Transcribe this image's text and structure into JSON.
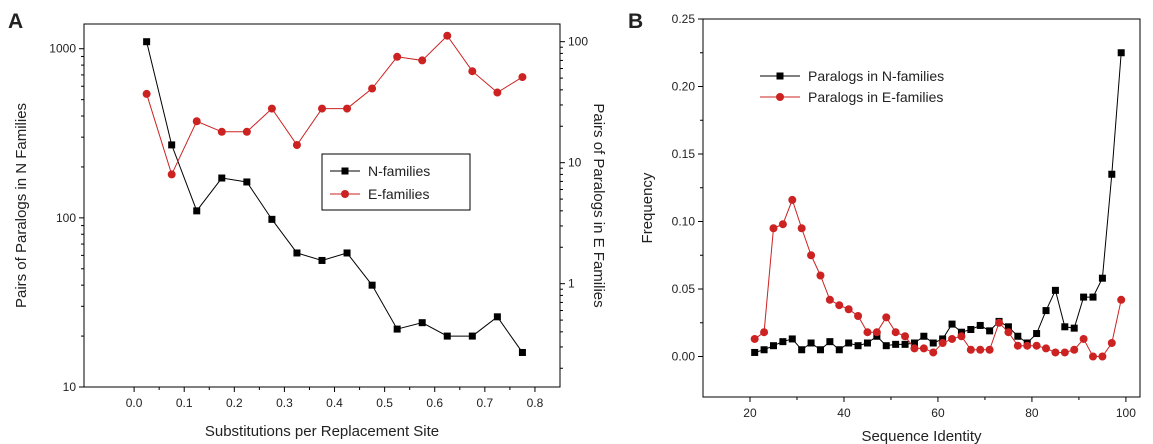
{
  "chart_data": [
    {
      "panel_label": "A",
      "type": "line",
      "xlabel": "Substitutions per Replacement Site",
      "ylabel_left": "Pairs of Paralogs in N Families",
      "ylabel_right": "Pairs of Paralogs in E Families",
      "xlim": [
        -0.1,
        0.85
      ],
      "xticks": [
        "0.0",
        "0.1",
        "0.2",
        "0.3",
        "0.4",
        "0.5",
        "0.6",
        "0.7",
        "0.8"
      ],
      "yscale_left": "log",
      "ylim_left": [
        10,
        1400
      ],
      "yticks_left": [
        "10",
        "100",
        "1000"
      ],
      "yscale_right": "log",
      "ylim_right": [
        0.14,
        140
      ],
      "yticks_right": [
        "1",
        "10",
        "100"
      ],
      "legend_placement": "center-right",
      "series": [
        {
          "name": "N-families",
          "axis": "left",
          "marker": "square",
          "color": "#000000",
          "x": [
            0.025,
            0.075,
            0.125,
            0.175,
            0.225,
            0.275,
            0.325,
            0.375,
            0.425,
            0.475,
            0.525,
            0.575,
            0.625,
            0.675,
            0.725,
            0.775
          ],
          "y": [
            1100,
            270,
            110,
            172,
            163,
            98,
            62,
            56,
            62,
            40,
            22,
            24,
            20,
            20,
            26,
            16
          ]
        },
        {
          "name": "E-families",
          "axis": "right",
          "marker": "circle",
          "color": "#cc2222",
          "x": [
            0.025,
            0.075,
            0.125,
            0.175,
            0.225,
            0.275,
            0.325,
            0.375,
            0.425,
            0.475,
            0.525,
            0.575,
            0.625,
            0.675,
            0.725,
            0.775
          ],
          "y": [
            37,
            8,
            22,
            18,
            18,
            28,
            14,
            28,
            28,
            41,
            75,
            70,
            112,
            57,
            38,
            51
          ]
        }
      ]
    },
    {
      "panel_label": "B",
      "type": "line",
      "xlabel": "Sequence Identity",
      "ylabel": "Frequency",
      "xlim": [
        10,
        103
      ],
      "ylim": [
        -0.03,
        0.25
      ],
      "xticks": [
        "20",
        "40",
        "60",
        "80",
        "100"
      ],
      "yticks": [
        "0.00",
        "0.05",
        "0.10",
        "0.15",
        "0.20",
        "0.25"
      ],
      "legend_placement": "top-left",
      "series": [
        {
          "name": "Paralogs in N-families",
          "marker": "square",
          "color": "#000000",
          "x": [
            21,
            23,
            25,
            27,
            29,
            31,
            33,
            35,
            37,
            39,
            41,
            43,
            45,
            47,
            49,
            51,
            53,
            55,
            57,
            59,
            61,
            63,
            65,
            67,
            69,
            71,
            73,
            75,
            77,
            79,
            81,
            83,
            85,
            87,
            89,
            91,
            93,
            95,
            97,
            99
          ],
          "y": [
            0.003,
            0.005,
            0.008,
            0.011,
            0.013,
            0.005,
            0.01,
            0.005,
            0.011,
            0.005,
            0.01,
            0.008,
            0.01,
            0.015,
            0.008,
            0.009,
            0.009,
            0.01,
            0.015,
            0.01,
            0.013,
            0.024,
            0.018,
            0.02,
            0.023,
            0.019,
            0.026,
            0.022,
            0.015,
            0.01,
            0.017,
            0.034,
            0.049,
            0.022,
            0.021,
            0.044,
            0.044,
            0.058,
            0.135,
            0.225
          ]
        },
        {
          "name": "Paralogs in E-families",
          "marker": "circle",
          "color": "#cc2222",
          "x": [
            21,
            23,
            25,
            27,
            29,
            31,
            33,
            35,
            37,
            39,
            41,
            43,
            45,
            47,
            49,
            51,
            53,
            55,
            57,
            59,
            61,
            63,
            65,
            67,
            69,
            71,
            73,
            75,
            77,
            79,
            81,
            83,
            85,
            87,
            89,
            91,
            93,
            95,
            97,
            99
          ],
          "y": [
            0.013,
            0.018,
            0.095,
            0.098,
            0.116,
            0.095,
            0.075,
            0.06,
            0.042,
            0.038,
            0.035,
            0.03,
            0.018,
            0.018,
            0.029,
            0.018,
            0.015,
            0.006,
            0.006,
            0.003,
            0.01,
            0.013,
            0.015,
            0.005,
            0.005,
            0.005,
            0.025,
            0.018,
            0.008,
            0.008,
            0.008,
            0.006,
            0.003,
            0.003,
            0.005,
            0.013,
            0.0,
            0.0,
            0.01,
            0.042
          ]
        }
      ]
    }
  ]
}
